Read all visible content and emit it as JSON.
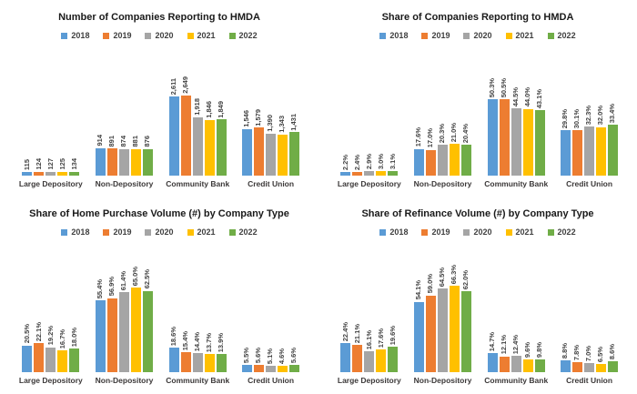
{
  "years": [
    "2018",
    "2019",
    "2020",
    "2021",
    "2022"
  ],
  "series_colors": {
    "2018": "#5B9BD5",
    "2019": "#ED7D31",
    "2020": "#A5A5A5",
    "2021": "#FFC000",
    "2022": "#70AD47"
  },
  "chart_data": [
    {
      "type": "bar",
      "title": "Number of Companies Reporting to HMDA",
      "categories": [
        "Large Depository",
        "Non-Depository",
        "Community Bank",
        "Credit Union"
      ],
      "legend_position": "top",
      "grid": false,
      "ylim": [
        0,
        3000
      ],
      "series": [
        {
          "name": "2018",
          "color": "#5B9BD5",
          "values": [
            115,
            914,
            2611,
            1546
          ],
          "labels": [
            "115",
            "914",
            "2,611",
            "1,546"
          ]
        },
        {
          "name": "2019",
          "color": "#ED7D31",
          "values": [
            124,
            891,
            2649,
            1579
          ],
          "labels": [
            "124",
            "891",
            "2,649",
            "1,579"
          ]
        },
        {
          "name": "2020",
          "color": "#A5A5A5",
          "values": [
            127,
            874,
            1918,
            1390
          ],
          "labels": [
            "127",
            "874",
            "1,918",
            "1,390"
          ]
        },
        {
          "name": "2021",
          "color": "#FFC000",
          "values": [
            125,
            881,
            1846,
            1343
          ],
          "labels": [
            "125",
            "881",
            "1,846",
            "1,343"
          ]
        },
        {
          "name": "2022",
          "color": "#70AD47",
          "values": [
            134,
            876,
            1849,
            1431
          ],
          "labels": [
            "134",
            "876",
            "1,849",
            "1,431"
          ]
        }
      ]
    },
    {
      "type": "bar",
      "title": "Share of Companies Reporting to HMDA",
      "categories": [
        "Large Depository",
        "Non-Depository",
        "Community Bank",
        "Credit Union"
      ],
      "legend_position": "top",
      "grid": false,
      "ylim": [
        0,
        60
      ],
      "series": [
        {
          "name": "2018",
          "color": "#5B9BD5",
          "values": [
            2.2,
            17.6,
            50.3,
            29.8
          ],
          "labels": [
            "2.2%",
            "17.6%",
            "50.3%",
            "29.8%"
          ]
        },
        {
          "name": "2019",
          "color": "#ED7D31",
          "values": [
            2.4,
            17.0,
            50.5,
            30.1
          ],
          "labels": [
            "2.4%",
            "17.0%",
            "50.5%",
            "30.1%"
          ]
        },
        {
          "name": "2020",
          "color": "#A5A5A5",
          "values": [
            2.9,
            20.3,
            44.5,
            32.3
          ],
          "labels": [
            "2.9%",
            "20.3%",
            "44.5%",
            "32.3%"
          ]
        },
        {
          "name": "2021",
          "color": "#FFC000",
          "values": [
            3.0,
            21.0,
            44.0,
            32.0
          ],
          "labels": [
            "3.0%",
            "21.0%",
            "44.0%",
            "32.0%"
          ]
        },
        {
          "name": "2022",
          "color": "#70AD47",
          "values": [
            3.1,
            20.4,
            43.1,
            33.4
          ],
          "labels": [
            "3.1%",
            "20.4%",
            "43.1%",
            "33.4%"
          ]
        }
      ]
    },
    {
      "type": "bar",
      "title": "Share of Home Purchase Volume (#) by Company Type",
      "categories": [
        "Large Depository",
        "Non-Depository",
        "Community Bank",
        "Credit Union"
      ],
      "legend_position": "top",
      "grid": false,
      "ylim": [
        0,
        70
      ],
      "series": [
        {
          "name": "2018",
          "color": "#5B9BD5",
          "values": [
            20.5,
            55.4,
            18.6,
            5.5
          ],
          "labels": [
            "20.5%",
            "55.4%",
            "18.6%",
            "5.5%"
          ]
        },
        {
          "name": "2019",
          "color": "#ED7D31",
          "values": [
            22.1,
            56.9,
            15.4,
            5.6
          ],
          "labels": [
            "22.1%",
            "56.9%",
            "15.4%",
            "5.6%"
          ]
        },
        {
          "name": "2020",
          "color": "#A5A5A5",
          "values": [
            19.2,
            61.4,
            14.4,
            5.1
          ],
          "labels": [
            "19.2%",
            "61.4%",
            "14.4%",
            "5.1%"
          ]
        },
        {
          "name": "2021",
          "color": "#FFC000",
          "values": [
            16.7,
            65.0,
            13.7,
            4.6
          ],
          "labels": [
            "16.7%",
            "65.0%",
            "13.7%",
            "4.6%"
          ]
        },
        {
          "name": "2022",
          "color": "#70AD47",
          "values": [
            18.0,
            62.5,
            13.9,
            5.6
          ],
          "labels": [
            "18.0%",
            "62.5%",
            "13.9%",
            "5.6%"
          ]
        }
      ]
    },
    {
      "type": "bar",
      "title": "Share of Refinance Volume (#) by Company Type",
      "categories": [
        "Large Depository",
        "Non-Depository",
        "Community Bank",
        "Credit Union"
      ],
      "legend_position": "top",
      "grid": false,
      "ylim": [
        0,
        70
      ],
      "series": [
        {
          "name": "2018",
          "color": "#5B9BD5",
          "values": [
            22.4,
            54.1,
            14.7,
            8.8
          ],
          "labels": [
            "22.4%",
            "54.1%",
            "14.7%",
            "8.8%"
          ]
        },
        {
          "name": "2019",
          "color": "#ED7D31",
          "values": [
            21.1,
            59.0,
            12.1,
            7.8
          ],
          "labels": [
            "21.1%",
            "59.0%",
            "12.1%",
            "7.8%"
          ]
        },
        {
          "name": "2020",
          "color": "#A5A5A5",
          "values": [
            16.1,
            64.5,
            12.4,
            7.0
          ],
          "labels": [
            "16.1%",
            "64.5%",
            "12.4%",
            "7.0%"
          ]
        },
        {
          "name": "2021",
          "color": "#FFC000",
          "values": [
            17.6,
            66.3,
            9.6,
            6.5
          ],
          "labels": [
            "17.6%",
            "66.3%",
            "9.6%",
            "6.5%"
          ]
        },
        {
          "name": "2022",
          "color": "#70AD47",
          "values": [
            19.6,
            62.0,
            9.8,
            8.6
          ],
          "labels": [
            "19.6%",
            "62.0%",
            "9.8%",
            "8.6%"
          ]
        }
      ]
    }
  ]
}
